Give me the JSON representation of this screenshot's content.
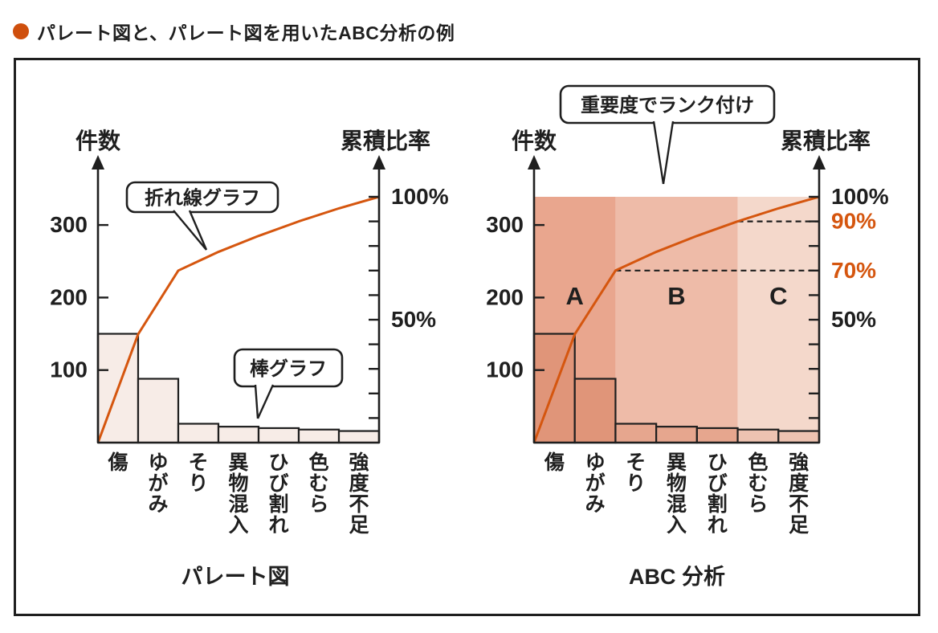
{
  "header": {
    "title": "パレート図と、パレート図を用いたABC分析の例"
  },
  "colors": {
    "ink": "#1f1f1f",
    "orange": "#d5560f",
    "bullet": "#cf4f0d",
    "plain_bar_fill": "#f7ece7",
    "zone_a_bg": "#e9a68e",
    "zone_a_bar": "#e09579",
    "zone_b_bg": "#eebba8",
    "zone_b_bar": "#e6a68e",
    "zone_c_bg": "#f4d8cb",
    "zone_c_bar": "#eec3b1"
  },
  "chart_data": [
    {
      "type": "bar",
      "variant": "pareto",
      "title": "パレート図",
      "left_axis_label": "件数",
      "right_axis_label": "累積比率",
      "categories": [
        "傷",
        "ゆがみ",
        "そり",
        "異物混入",
        "ひび割れ",
        "色むら",
        "強度不足"
      ],
      "values": [
        150,
        88,
        26,
        22,
        20,
        18,
        16
      ],
      "total": 340,
      "cumulative_pct": [
        44.1,
        70,
        77.6,
        84.1,
        90,
        95.3,
        100
      ],
      "left_axis_ticks": [
        100,
        200,
        300
      ],
      "left_axis_range": [
        0,
        380
      ],
      "right_axis_range_pct": [
        0,
        100
      ],
      "right_axis_tick_step_pct": 10,
      "right_axis_labels": [
        {
          "pct": 100,
          "text": "100%",
          "color": "ink"
        },
        {
          "pct": 50,
          "text": "50%",
          "color": "ink"
        }
      ],
      "callouts": [
        {
          "text": "折れ線グラフ",
          "points_to": "cumulative-line"
        },
        {
          "text": "棒グラフ",
          "points_to": "bars"
        }
      ]
    },
    {
      "type": "bar",
      "variant": "pareto-abc",
      "title": "ABC 分析",
      "left_axis_label": "件数",
      "right_axis_label": "累積比率",
      "categories": [
        "傷",
        "ゆがみ",
        "そり",
        "異物混入",
        "ひび割れ",
        "色むら",
        "強度不足"
      ],
      "values": [
        150,
        88,
        26,
        22,
        20,
        18,
        16
      ],
      "total": 340,
      "cumulative_pct": [
        44.1,
        70,
        77.6,
        84.1,
        90,
        95.3,
        100
      ],
      "left_axis_ticks": [
        100,
        200,
        300
      ],
      "left_axis_range": [
        0,
        380
      ],
      "right_axis_range_pct": [
        0,
        100
      ],
      "right_axis_tick_step_pct": 10,
      "zones": [
        {
          "label": "A",
          "bar_indices": [
            0,
            1
          ]
        },
        {
          "label": "B",
          "bar_indices": [
            2,
            3,
            4
          ]
        },
        {
          "label": "C",
          "bar_indices": [
            5,
            6
          ]
        }
      ],
      "dashed_levels_pct": [
        90,
        70
      ],
      "right_axis_labels": [
        {
          "pct": 100,
          "text": "100%",
          "color": "ink"
        },
        {
          "pct": 90,
          "text": "90%",
          "color": "orange"
        },
        {
          "pct": 70,
          "text": "70%",
          "color": "orange"
        },
        {
          "pct": 50,
          "text": "50%",
          "color": "ink"
        }
      ],
      "callouts": [
        {
          "text": "重要度でランク付け",
          "points_to": "zones"
        }
      ]
    }
  ]
}
